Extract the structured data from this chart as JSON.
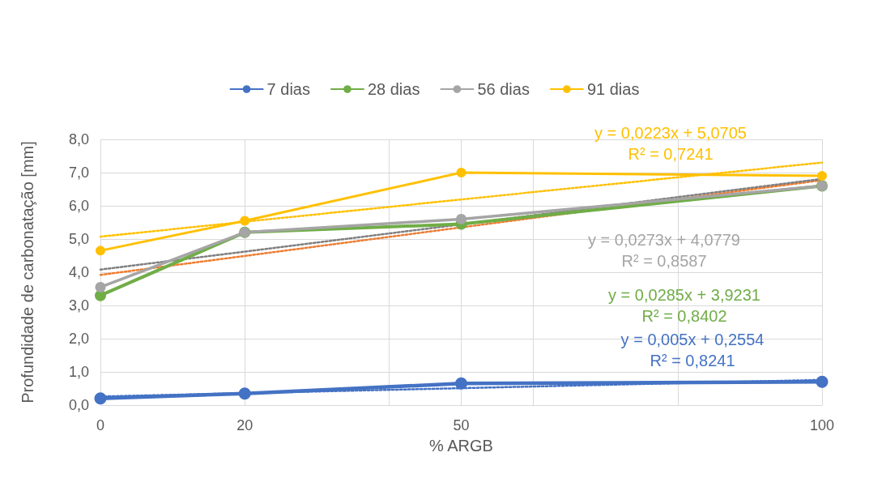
{
  "chart_data": {
    "type": "line",
    "xlabel": "% ARGB",
    "ylabel": "Profundidade de carbonatação [mm]",
    "xlim": [
      0,
      100
    ],
    "xticks": [
      0,
      20,
      {
        "value": 40,
        "label": null
      },
      50,
      {
        "value": 60,
        "label": null
      },
      {
        "value": 80,
        "label": null
      },
      100
    ],
    "ylim": [
      0,
      8
    ],
    "yticks": [
      {
        "value": 0,
        "label": "0,0"
      },
      {
        "value": 1,
        "label": "1,0"
      },
      {
        "value": 2,
        "label": "2,0"
      },
      {
        "value": 3,
        "label": "3,0"
      },
      {
        "value": 4,
        "label": "4,0"
      },
      {
        "value": 5,
        "label": "5,0"
      },
      {
        "value": 6,
        "label": "6,0"
      },
      {
        "value": 7,
        "label": "7,0"
      },
      {
        "value": 8,
        "label": "8,0"
      }
    ],
    "grid": true,
    "legend": "top",
    "x": [
      0,
      20,
      50,
      100
    ],
    "series": [
      {
        "name": "7 dias",
        "color": "#4472c4",
        "marker": "circle",
        "line_style": "solid",
        "values": [
          0.2,
          0.35,
          0.65,
          0.7
        ]
      },
      {
        "name": "28 dias",
        "color": "#70ad47",
        "marker": "circle",
        "line_style": "solid",
        "values": [
          3.3,
          5.2,
          5.45,
          6.6
        ]
      },
      {
        "name": "56 dias",
        "color": "#a5a5a5",
        "marker": "circle",
        "line_style": "solid",
        "values": [
          3.55,
          5.2,
          5.6,
          6.6
        ]
      },
      {
        "name": "91 dias",
        "color": "#ffc000",
        "marker": "circle",
        "line_style": "solid",
        "values": [
          4.65,
          5.55,
          7.0,
          6.9
        ]
      },
      {
        "color": "#4472c4",
        "marker": "none",
        "line_style": "dotted",
        "values": [
          0.26,
          0.36,
          0.51,
          0.76
        ]
      },
      {
        "color": "#ed7d31",
        "marker": "none",
        "line_style": "dotted",
        "values": [
          3.92,
          4.49,
          5.35,
          6.77
        ]
      },
      {
        "color": "#7f7f7f",
        "marker": "none",
        "line_style": "dotted",
        "values": [
          4.08,
          4.62,
          5.44,
          6.81
        ]
      },
      {
        "color": "#ffc000",
        "marker": "none",
        "line_style": "dotted",
        "values": [
          5.07,
          5.52,
          6.19,
          7.3
        ]
      }
    ],
    "annotations": [
      "y = 0,005x + 0,2554\nR² = 0,8241",
      "y = 0,0285x + 3,9231\nR² = 0,8402",
      "y = 0,0273x + 4,0779\nR² = 0,8587",
      "y = 0,0223x + 5,0705\nR² = 0,7241"
    ]
  }
}
